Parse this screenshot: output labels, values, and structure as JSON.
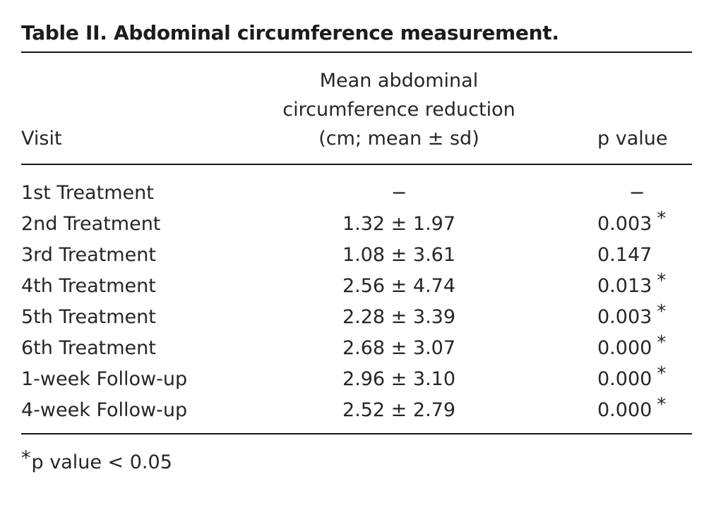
{
  "page": {
    "background": "#ffffff",
    "text_color": "#262626",
    "title_color": "#1c1c1c",
    "rule_color": "#161616"
  },
  "table": {
    "title": "Table II. Abdominal circumference measurement.",
    "header": {
      "visit": "Visit",
      "mean_line1": "Mean abdominal",
      "mean_line2": "circumference reduction",
      "mean_line3": "(cm; mean ± sd)",
      "pvalue": "p value"
    },
    "rows": [
      {
        "visit": "1st Treatment",
        "mean": "−",
        "p": "−",
        "star": ""
      },
      {
        "visit": "2nd Treatment",
        "mean": "1.32 ± 1.97",
        "p": "0.003",
        "star": "*"
      },
      {
        "visit": "3rd Treatment",
        "mean": "1.08 ± 3.61",
        "p": "0.147",
        "star": ""
      },
      {
        "visit": "4th Treatment",
        "mean": "2.56 ± 4.74",
        "p": "0.013",
        "star": "*"
      },
      {
        "visit": "5th Treatment",
        "mean": "2.28 ± 3.39",
        "p": "0.003",
        "star": "*"
      },
      {
        "visit": "6th Treatment",
        "mean": "2.68 ± 3.07",
        "p": "0.000",
        "star": "*"
      },
      {
        "visit": "1-week Follow-up",
        "mean": "2.96 ± 3.10",
        "p": "0.000",
        "star": "*"
      },
      {
        "visit": "4-week Follow-up",
        "mean": "2.52 ± 2.79",
        "p": "0.000",
        "star": "*"
      }
    ],
    "footnote": {
      "marker": "*",
      "text": "p value < 0.05"
    }
  }
}
